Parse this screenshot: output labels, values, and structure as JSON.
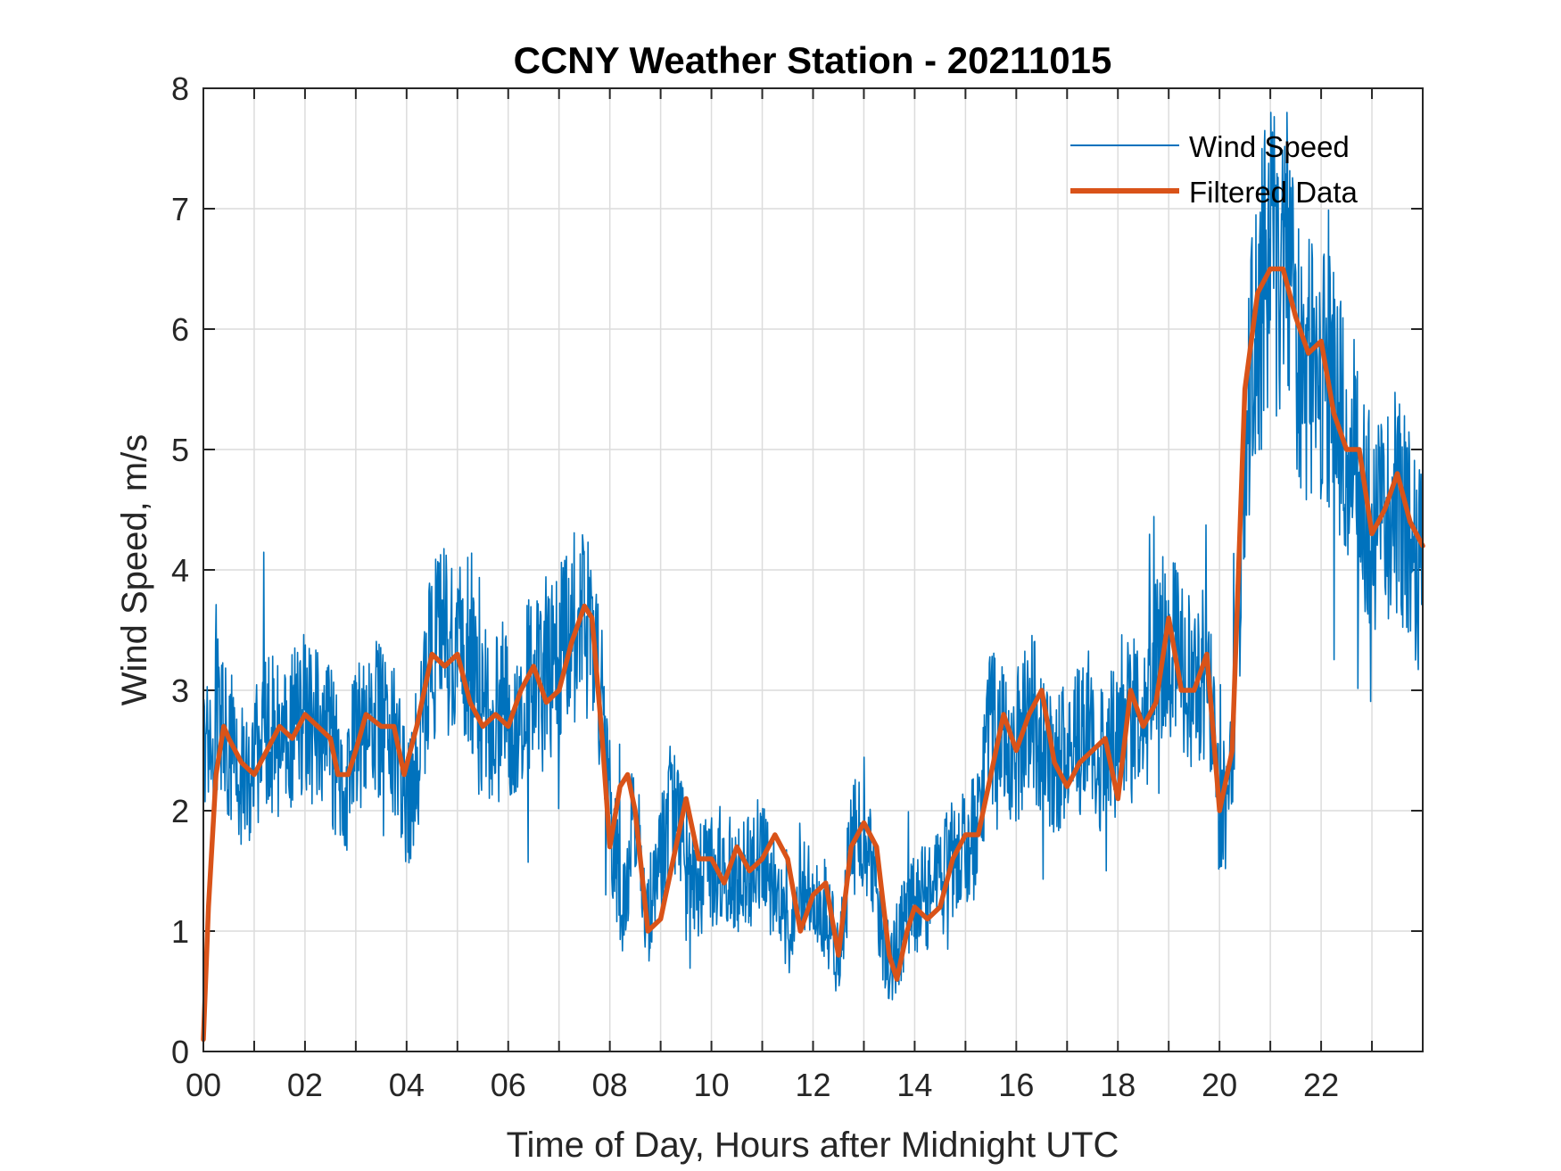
{
  "chart_data": {
    "type": "line",
    "title": "CCNY Weather Station - 20211015",
    "xlabel": "Time of Day, Hours after Midnight UTC",
    "ylabel": "Wind Speed, m/s",
    "xlim": [
      0,
      24
    ],
    "ylim": [
      0,
      8
    ],
    "grid": true,
    "legend_position": "top-right",
    "x_ticks": [
      0,
      2,
      4,
      6,
      8,
      10,
      12,
      14,
      16,
      18,
      20,
      22
    ],
    "x_tick_labels": [
      "00",
      "02",
      "04",
      "06",
      "08",
      "10",
      "12",
      "14",
      "16",
      "18",
      "20",
      "22"
    ],
    "y_ticks": [
      0,
      1,
      2,
      3,
      4,
      5,
      6,
      7,
      8
    ],
    "y_tick_labels": [
      "0",
      "1",
      "2",
      "3",
      "4",
      "5",
      "6",
      "7",
      "8"
    ],
    "series": [
      {
        "name": "Wind Speed",
        "color": "#0072BD",
        "noisy": true,
        "x": [
          0.0,
          0.25,
          0.5,
          0.75,
          1.0,
          1.25,
          1.5,
          1.75,
          2.0,
          2.25,
          2.5,
          2.75,
          3.0,
          3.25,
          3.5,
          3.75,
          4.0,
          4.25,
          4.5,
          4.75,
          5.0,
          5.25,
          5.5,
          5.75,
          6.0,
          6.25,
          6.5,
          6.75,
          7.0,
          7.25,
          7.5,
          7.75,
          8.0,
          8.25,
          8.5,
          8.75,
          9.0,
          9.25,
          9.5,
          9.75,
          10.0,
          10.25,
          10.5,
          10.75,
          11.0,
          11.25,
          11.5,
          11.75,
          12.0,
          12.25,
          12.5,
          12.75,
          13.0,
          13.25,
          13.5,
          13.75,
          14.0,
          14.25,
          14.5,
          14.75,
          15.0,
          15.25,
          15.5,
          15.75,
          16.0,
          16.25,
          16.5,
          16.75,
          17.0,
          17.25,
          17.5,
          17.75,
          18.0,
          18.25,
          18.5,
          18.75,
          19.0,
          19.25,
          19.5,
          19.75,
          20.0,
          20.25,
          20.5,
          20.75,
          21.0,
          21.25,
          21.5,
          21.75,
          22.0,
          22.25,
          22.5,
          22.75,
          23.0,
          23.25,
          23.5,
          23.75,
          24.0
        ],
        "y": [
          2.3,
          2.8,
          2.6,
          2.1,
          2.4,
          2.7,
          2.6,
          2.7,
          2.8,
          2.7,
          2.6,
          2.1,
          2.6,
          2.8,
          2.7,
          2.6,
          2.0,
          2.5,
          3.3,
          3.4,
          3.3,
          3.2,
          2.7,
          2.8,
          2.8,
          2.9,
          3.1,
          3.0,
          3.3,
          3.5,
          3.6,
          3.3,
          2.0,
          1.2,
          2.0,
          1.1,
          1.7,
          2.0,
          1.6,
          1.4,
          1.5,
          1.6,
          1.4,
          1.5,
          1.7,
          1.3,
          0.9,
          1.5,
          1.3,
          1.2,
          0.8,
          1.7,
          1.9,
          1.3,
          0.7,
          1.0,
          1.2,
          1.3,
          1.4,
          1.6,
          1.7,
          1.8,
          2.7,
          2.6,
          2.5,
          2.9,
          2.6,
          2.4,
          2.5,
          2.6,
          2.7,
          2.3,
          2.8,
          2.9,
          2.7,
          3.3,
          3.4,
          3.2,
          3.0,
          3.2,
          2.0,
          2.2,
          5.0,
          6.1,
          6.6,
          6.4,
          6.0,
          5.6,
          5.7,
          5.4,
          5.0,
          4.8,
          4.3,
          4.4,
          4.6,
          4.2,
          4.0
        ]
      },
      {
        "name": "Filtered Data",
        "color": "#D95319",
        "x": [
          0.0,
          0.1,
          0.25,
          0.4,
          0.5,
          0.75,
          1.0,
          1.25,
          1.5,
          1.75,
          2.0,
          2.25,
          2.5,
          2.65,
          2.85,
          3.0,
          3.2,
          3.5,
          3.75,
          3.95,
          4.2,
          4.5,
          4.75,
          5.0,
          5.25,
          5.5,
          5.75,
          6.0,
          6.25,
          6.5,
          6.75,
          7.0,
          7.25,
          7.5,
          7.65,
          7.85,
          8.0,
          8.2,
          8.35,
          8.5,
          8.75,
          9.0,
          9.25,
          9.5,
          9.75,
          10.0,
          10.25,
          10.5,
          10.75,
          11.0,
          11.25,
          11.5,
          11.75,
          12.0,
          12.25,
          12.5,
          12.75,
          13.0,
          13.25,
          13.5,
          13.65,
          13.85,
          14.0,
          14.25,
          14.5,
          14.75,
          15.0,
          15.25,
          15.5,
          15.75,
          16.0,
          16.25,
          16.5,
          16.75,
          17.0,
          17.25,
          17.5,
          17.75,
          18.0,
          18.25,
          18.5,
          18.75,
          19.0,
          19.25,
          19.5,
          19.75,
          20.0,
          20.25,
          20.5,
          20.75,
          21.0,
          21.25,
          21.5,
          21.75,
          22.0,
          22.25,
          22.5,
          22.75,
          23.0,
          23.25,
          23.5,
          23.75,
          24.0
        ],
        "y": [
          0.1,
          1.2,
          2.3,
          2.7,
          2.6,
          2.4,
          2.3,
          2.5,
          2.7,
          2.6,
          2.8,
          2.7,
          2.6,
          2.3,
          2.3,
          2.5,
          2.8,
          2.7,
          2.7,
          2.3,
          2.7,
          3.3,
          3.2,
          3.3,
          2.9,
          2.7,
          2.8,
          2.7,
          3.0,
          3.2,
          2.9,
          3.0,
          3.4,
          3.7,
          3.6,
          2.6,
          1.7,
          2.2,
          2.3,
          2.0,
          1.0,
          1.1,
          1.6,
          2.1,
          1.6,
          1.6,
          1.4,
          1.7,
          1.5,
          1.6,
          1.8,
          1.6,
          1.0,
          1.3,
          1.4,
          0.8,
          1.7,
          1.9,
          1.7,
          0.8,
          0.6,
          1.0,
          1.2,
          1.1,
          1.2,
          1.6,
          1.8,
          1.8,
          2.3,
          2.8,
          2.5,
          2.8,
          3.0,
          2.4,
          2.2,
          2.4,
          2.5,
          2.6,
          2.1,
          3.0,
          2.7,
          2.9,
          3.6,
          3.0,
          3.0,
          3.3,
          2.0,
          2.5,
          5.5,
          6.3,
          6.5,
          6.5,
          6.1,
          5.8,
          5.9,
          5.3,
          5.0,
          5.0,
          4.3,
          4.5,
          4.8,
          4.4,
          4.2
        ]
      }
    ]
  }
}
